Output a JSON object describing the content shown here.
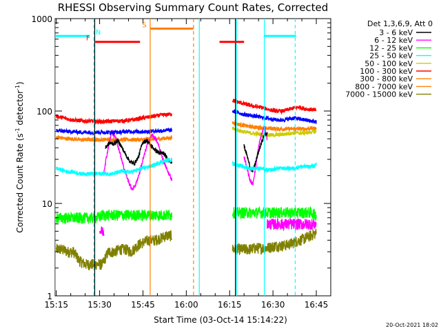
{
  "chart_data": {
    "type": "line",
    "title": "RHESSI Observing Summary Count Rates, Corrected",
    "xlabel": "Start Time (03-Oct-14 15:14:22)",
    "ylabel_main": "Corrected Count Rate (s",
    "ylabel_sup1": "-1",
    "ylabel_mid": " detector",
    "ylabel_sup2": "-1",
    "ylabel_end": ")",
    "y_scale": "log",
    "ylim": [
      1,
      1000
    ],
    "xlim_minutes": [
      -0.4,
      95
    ],
    "x_tick_labels": [
      {
        "label": "15:15",
        "minute": 0
      },
      {
        "label": "15:30",
        "minute": 15
      },
      {
        "label": "15:45",
        "minute": 30
      },
      {
        "label": "16:00",
        "minute": 45
      },
      {
        "label": "16:15",
        "minute": 60
      },
      {
        "label": "16:30",
        "minute": 75
      },
      {
        "label": "16:45",
        "minute": 90
      }
    ],
    "y_tick_labels": [
      {
        "label": "1",
        "value": 1
      },
      {
        "label": "10",
        "value": 10
      },
      {
        "label": "100",
        "value": 100
      },
      {
        "label": "1000",
        "value": 1000
      }
    ],
    "legend_title": "Det 1,3,6,9, Att 0",
    "legend_placement": "right",
    "series": [
      {
        "name": "3 - 6 keV",
        "color": "#000000",
        "segments": [
          {
            "t0": 17,
            "t1": 40,
            "values": [
              40,
              45,
              44,
              48,
              40,
              33,
              28,
              27,
              32,
              46,
              48,
              42,
              38,
              35,
              35,
              30,
              28
            ]
          },
          {
            "t0": 65,
            "t1": 73,
            "values": [
              42,
              33,
              25,
              22,
              28,
              36,
              45,
              55,
              58
            ]
          }
        ]
      },
      {
        "name": "6 - 12 keV",
        "color": "#ff00ff",
        "segments": [
          {
            "t0": 15,
            "t1": 16.5,
            "values": [
              5,
              5
            ]
          },
          {
            "t0": 16.5,
            "t1": 40,
            "values": [
              22,
              38,
              60,
              50,
              35,
              24,
              18,
              14,
              16,
              22,
              32,
              45,
              55,
              50,
              38,
              28,
              22,
              18
            ]
          },
          {
            "t0": 65,
            "t1": 73,
            "values": [
              32,
              24,
              18,
              16,
              24,
              40,
              55,
              68,
              50
            ]
          },
          {
            "t0": 73,
            "t1": 90,
            "values": [
              6,
              6,
              6,
              6,
              6,
              6,
              6
            ]
          }
        ]
      },
      {
        "name": "12 - 25 keV",
        "color": "#00ff00",
        "segments": [
          {
            "t0": 0,
            "t1": 40,
            "values": [
              7,
              7,
              7,
              7,
              7,
              7,
              7,
              7,
              7.5,
              7.5,
              7.5,
              7.5,
              7.5,
              7.5,
              7.5,
              7.5,
              7.5,
              7.5,
              7.5,
              7.5,
              7.5
            ]
          },
          {
            "t0": 61,
            "t1": 90,
            "values": [
              8,
              8,
              8,
              8,
              8,
              8,
              8,
              8,
              8,
              8,
              8,
              8,
              8,
              8,
              8,
              7.5
            ]
          }
        ]
      },
      {
        "name": "25 - 50 keV",
        "color": "#00ffff",
        "segments": [
          {
            "t0": 0,
            "t1": 40,
            "values": [
              24,
              23,
              22,
              22,
              21,
              21,
              21,
              21,
              21,
              21,
              21,
              22,
              22,
              22,
              23,
              24,
              25,
              26,
              28,
              29,
              30
            ]
          },
          {
            "t0": 61,
            "t1": 90,
            "values": [
              27,
              26,
              25,
              24,
              24,
              24,
              23,
              23,
              24,
              24,
              24,
              24,
              25,
              25,
              25,
              26
            ]
          }
        ]
      },
      {
        "name": "50 - 100 keV",
        "color": "#cccc00",
        "segments": [
          {
            "t0": 61,
            "t1": 90,
            "values": [
              65,
              62,
              60,
              58,
              57,
              56,
              55,
              55,
              55,
              56,
              57,
              58,
              58,
              58,
              59,
              60
            ]
          }
        ]
      },
      {
        "name": "100 - 300 keV",
        "color": "#ff0000",
        "segments": [
          {
            "t0": 0,
            "t1": 40,
            "values": [
              88,
              85,
              82,
              80,
              79,
              78,
              78,
              77,
              77,
              77,
              78,
              78,
              79,
              80,
              82,
              84,
              86,
              88,
              90,
              91,
              93
            ]
          },
          {
            "t0": 61,
            "t1": 90,
            "values": [
              130,
              125,
              120,
              116,
              112,
              110,
              106,
              102,
              100,
              100,
              104,
              108,
              110,
              106,
              104,
              102
            ]
          }
        ]
      },
      {
        "name": "300 - 800 keV",
        "color": "#ff8000",
        "segments": [
          {
            "t0": 0,
            "t1": 40,
            "values": [
              52,
              51,
              50,
              50,
              49,
              49,
              49,
              49,
              49,
              49,
              49,
              49,
              49,
              49,
              49,
              49,
              50,
              50,
              50,
              51,
              51
            ]
          },
          {
            "t0": 61,
            "t1": 90,
            "values": [
              75,
              72,
              70,
              68,
              67,
              66,
              65,
              65,
              64,
              64,
              64,
              64,
              64,
              64,
              65,
              65
            ]
          }
        ]
      },
      {
        "name": "800 - 7000 keV",
        "color": "#ff8000",
        "segments": []
      },
      {
        "name": "7000 - 15000 keV",
        "color": "#808000",
        "segments": [
          {
            "t0": 0,
            "t1": 40,
            "values": [
              3.2,
              3.2,
              3,
              3,
              2.4,
              2.2,
              2.2,
              2.2,
              2.2,
              3,
              3,
              3.2,
              3.2,
              3,
              3.5,
              3.8,
              4,
              4,
              4.2,
              4.5,
              4.5
            ]
          },
          {
            "t0": 61,
            "t1": 90,
            "values": [
              3.2,
              3.2,
              3.2,
              3.2,
              3.3,
              3.3,
              3.3,
              3.4,
              3.5,
              3.5,
              3.6,
              3.8,
              4,
              4.2,
              4.5,
              4.8
            ]
          }
        ]
      }
    ],
    "blue_rate": {
      "color": "#0000ff",
      "segments": [
        {
          "t0": 0,
          "t1": 40,
          "values": [
            62,
            61,
            60,
            60,
            59,
            59,
            59,
            59,
            59,
            59,
            59,
            59,
            60,
            60,
            60,
            60,
            60,
            61,
            61,
            62,
            62
          ]
        },
        {
          "t0": 61,
          "t1": 90,
          "values": [
            100,
            96,
            92,
            90,
            88,
            86,
            84,
            82,
            80,
            80,
            82,
            84,
            82,
            80,
            78,
            76
          ]
        }
      ]
    },
    "annotations": {
      "flags": [
        {
          "label": "N",
          "color": "#00ffff",
          "start": -0.3,
          "end": 11.5,
          "level": 650,
          "label_at": 14.5
        },
        {
          "label": "F",
          "color": "#ff0000",
          "start": 13.5,
          "end": 29,
          "level": 560,
          "label_at": 11
        },
        {
          "label": "S",
          "color": "#ff8000",
          "start": 32.5,
          "end": 47.5,
          "level": 780,
          "label_at": 30.5
        },
        {
          "label": "",
          "color": "#ff0000",
          "start": 56.5,
          "end": 65,
          "level": 560,
          "label_at": 56.5
        },
        {
          "label": "",
          "color": "#00ffff",
          "start": 72,
          "end": 83,
          "level": 650,
          "label_at": 72
        }
      ],
      "vertical_lines": [
        {
          "minute": -0.3,
          "color": "#00ffff",
          "style": "solid"
        },
        {
          "minute": 13,
          "color": "#00ffff",
          "style": "dashed"
        },
        {
          "minute": 13.3,
          "color": "#000000",
          "style": "solid"
        },
        {
          "minute": 32.5,
          "color": "#ff8000",
          "style": "solid"
        },
        {
          "minute": 47.5,
          "color": "#ff8000",
          "style": "dashed"
        },
        {
          "minute": 49.5,
          "color": "#00ffff",
          "style": "solid"
        },
        {
          "minute": 62,
          "color": "#000000",
          "style": "solid"
        },
        {
          "minute": 62.4,
          "color": "#00ffff",
          "style": "solid"
        },
        {
          "minute": 72,
          "color": "#00ffff",
          "style": "solid"
        },
        {
          "minute": 82.7,
          "color": "#00ffff",
          "style": "dashed"
        }
      ]
    }
  },
  "timestamp": "20-Oct-2021 18:02"
}
